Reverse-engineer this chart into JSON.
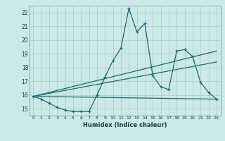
{
  "xlabel": "Humidex (Indice chaleur)",
  "ylabel": "",
  "bg_color": "#cce8e8",
  "grid_color": "#b0d5d5",
  "line_color": "#1a6b6b",
  "xlim": [
    -0.5,
    23.5
  ],
  "ylim": [
    14.5,
    22.5
  ],
  "xticks": [
    0,
    1,
    2,
    3,
    4,
    5,
    6,
    7,
    8,
    9,
    10,
    11,
    12,
    13,
    14,
    15,
    16,
    17,
    18,
    19,
    20,
    21,
    22,
    23
  ],
  "yticks": [
    15,
    16,
    17,
    18,
    19,
    20,
    21,
    22
  ],
  "main_line_x": [
    0,
    1,
    2,
    3,
    4,
    5,
    6,
    7,
    8,
    9,
    10,
    11,
    12,
    13,
    14,
    15,
    16,
    17,
    18,
    19,
    20,
    21,
    22,
    23
  ],
  "main_line_y": [
    15.9,
    15.7,
    15.4,
    15.1,
    14.9,
    14.8,
    14.8,
    14.8,
    16.0,
    17.3,
    18.5,
    19.4,
    22.3,
    20.6,
    21.2,
    17.4,
    16.6,
    16.4,
    19.2,
    19.3,
    18.8,
    16.9,
    16.2,
    15.7
  ],
  "line1_x": [
    0,
    23
  ],
  "line1_y": [
    15.9,
    15.7
  ],
  "line2_x": [
    0,
    23
  ],
  "line2_y": [
    15.9,
    18.4
  ],
  "line3_x": [
    0,
    23
  ],
  "line3_y": [
    15.9,
    19.2
  ]
}
